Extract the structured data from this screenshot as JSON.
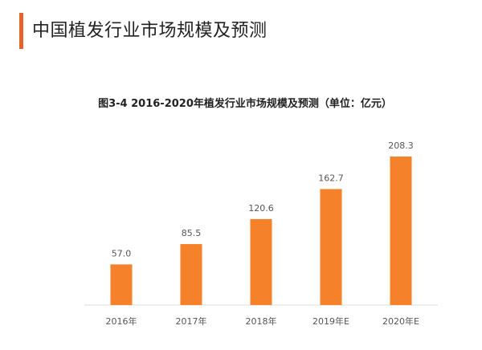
{
  "header": {
    "title": "中国植发行业市场规模及预测"
  },
  "chart_data": {
    "type": "bar",
    "title": "图3-4  2016-2020年植发行业市场规模及预测（单位：亿元）",
    "categories": [
      "2016年",
      "2017年",
      "2018年",
      "2019年E",
      "2020年E"
    ],
    "values": [
      57.0,
      85.5,
      120.6,
      162.7,
      208.3
    ],
    "data_labels": [
      "57.0",
      "85.5",
      "120.6",
      "162.7",
      "208.3"
    ],
    "xlabel": "",
    "ylabel": "",
    "ylim": [
      0,
      208.3
    ],
    "grid": false,
    "bar_color": "#f5812a",
    "accent_color": "#e8622c"
  }
}
